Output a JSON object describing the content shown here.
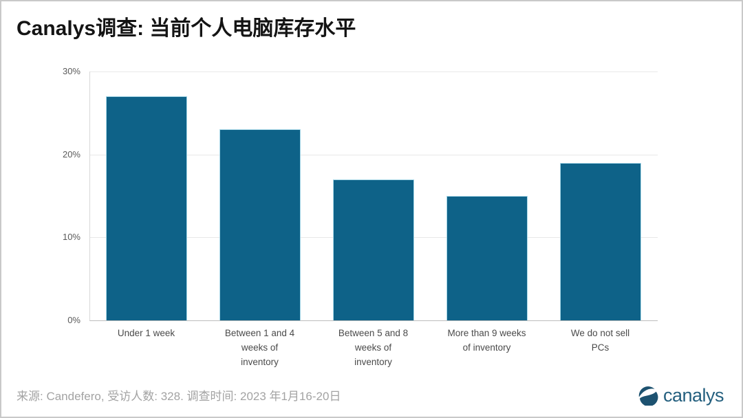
{
  "header": {
    "title": "Canalys调查: 当前个人电脑库存水平"
  },
  "chart_data": {
    "type": "bar",
    "title": "Canalys调查: 当前个人电脑库存水平",
    "categories": [
      "Under 1 week",
      "Between 1 and 4\nweeks of\ninventory",
      "Between 5 and 8\nweeks of\ninventory",
      "More than 9 weeks\nof inventory",
      "We do not sell\nPCs"
    ],
    "values": [
      27,
      23,
      17,
      15,
      19
    ],
    "unit": "%",
    "xlabel": "",
    "ylabel": "",
    "ylim": [
      0,
      30
    ],
    "ytick_labels": [
      "30%",
      "20%",
      "10%",
      "0%"
    ],
    "grid": true,
    "legend": false,
    "bar_color": "#0e6288",
    "bar_border_color": "#a7d8e8"
  },
  "footer": {
    "text": "来源: Candefero, 受访人数: 328. 调查时间: 2023 年1月16-20日"
  },
  "logo": {
    "icon": "canalys-swoosh-circle",
    "text": "canalys",
    "color": "#25607f"
  }
}
